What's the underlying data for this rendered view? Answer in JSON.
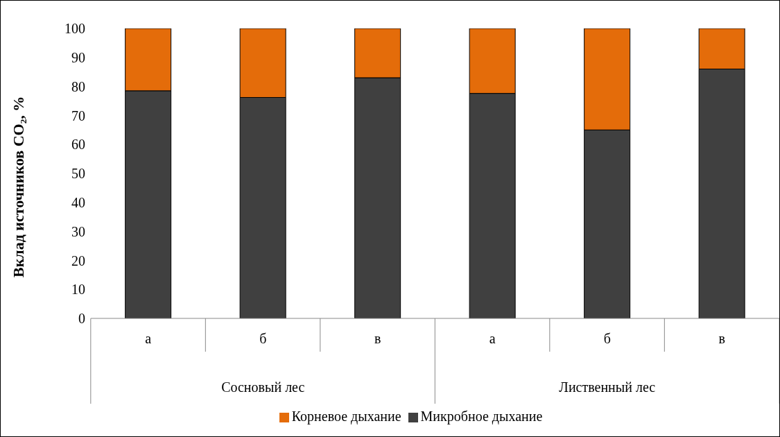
{
  "chart_data": {
    "type": "bar",
    "stacked": true,
    "ylabel": "Вклад источников CO₂, %",
    "categories": [
      "а",
      "б",
      "в",
      "а",
      "б",
      "в"
    ],
    "annotations": [
      "Сосновый лес",
      "Лиственный лес"
    ],
    "series": [
      {
        "name": "Микробное дыхание",
        "color": "#404040",
        "values": [
          78.5,
          76.2,
          83,
          77.6,
          65,
          86
        ]
      },
      {
        "name": "Корневое дыхание",
        "color": "#e46c0a",
        "values": [
          21.5,
          23.8,
          17,
          22.4,
          35,
          14
        ]
      }
    ],
    "ylim": [
      0,
      100
    ],
    "yticks": [
      0,
      10,
      20,
      30,
      40,
      50,
      60,
      70,
      80,
      90,
      100
    ],
    "grid": false,
    "legend": "bottom"
  }
}
